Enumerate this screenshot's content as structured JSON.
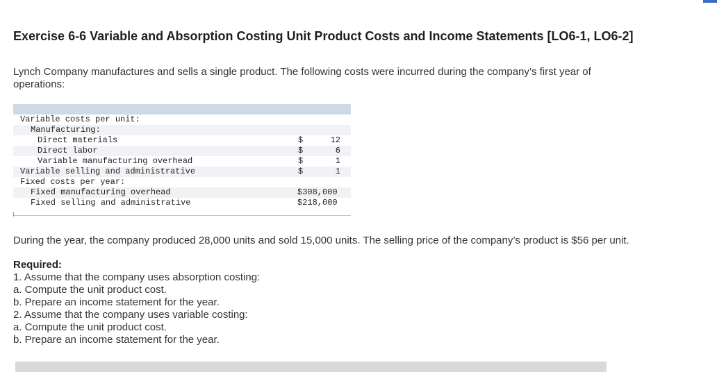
{
  "title": "Exercise 6-6 Variable and Absorption Costing Unit Product Costs and Income Statements [LO6-1, LO6-2]",
  "intro": "Lynch Company manufactures and sells a single product. The following costs were incurred during the company’s first year of operations:",
  "table": {
    "variable_header": "Variable costs per unit:",
    "manufacturing_header": "Manufacturing:",
    "direct_materials": {
      "label": "Direct materials",
      "currency": "$",
      "amount": "12"
    },
    "direct_labor": {
      "label": "Direct labor",
      "currency": "$",
      "amount": "6"
    },
    "variable_mfg_overhead": {
      "label": "Variable manufacturing overhead",
      "currency": "$",
      "amount": "1"
    },
    "variable_selling_admin": {
      "label": "Variable selling and administrative",
      "currency": "$",
      "amount": "1"
    },
    "fixed_header": "Fixed costs per year:",
    "fixed_mfg_overhead": {
      "label": "Fixed manufacturing overhead",
      "amount": "$308,000"
    },
    "fixed_selling_admin": {
      "label": "Fixed selling and administrative",
      "amount": "$218,000"
    }
  },
  "paragraph": "During the year, the company produced 28,000 units and sold 15,000 units. The selling price of the company’s product is $56 per unit.",
  "required": {
    "heading": "Required:",
    "items": [
      "1. Assume that the company uses absorption costing:",
      "a. Compute the unit product cost.",
      "b. Prepare an income statement for the year.",
      "2. Assume that the company uses variable costing:",
      "a. Compute the unit product cost.",
      "b. Prepare an income statement for the year."
    ]
  }
}
